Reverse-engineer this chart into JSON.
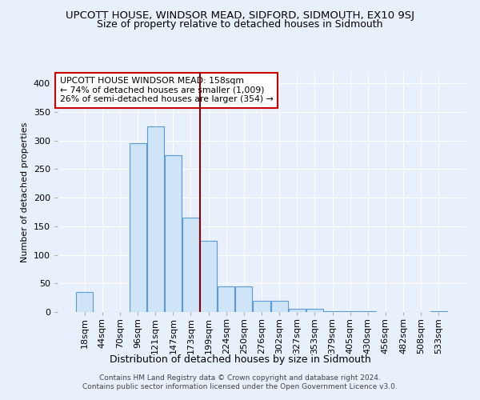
{
  "title": "UPCOTT HOUSE, WINDSOR MEAD, SIDFORD, SIDMOUTH, EX10 9SJ",
  "subtitle": "Size of property relative to detached houses in Sidmouth",
  "xlabel": "Distribution of detached houses by size in Sidmouth",
  "ylabel": "Number of detached properties",
  "categories": [
    "18sqm",
    "44sqm",
    "70sqm",
    "96sqm",
    "121sqm",
    "147sqm",
    "173sqm",
    "199sqm",
    "224sqm",
    "250sqm",
    "276sqm",
    "302sqm",
    "327sqm",
    "353sqm",
    "379sqm",
    "405sqm",
    "430sqm",
    "456sqm",
    "482sqm",
    "508sqm",
    "533sqm"
  ],
  "values": [
    35,
    0,
    0,
    295,
    325,
    275,
    165,
    125,
    45,
    45,
    20,
    20,
    5,
    5,
    2,
    2,
    1,
    0,
    0,
    0,
    2
  ],
  "bar_color": "#d0e4f7",
  "bar_edge_color": "#5b9bd5",
  "vline_x": 6.5,
  "vline_color": "#8B0000",
  "annotation_text": "UPCOTT HOUSE WINDSOR MEAD: 158sqm\n← 74% of detached houses are smaller (1,009)\n26% of semi-detached houses are larger (354) →",
  "annotation_box_color": "white",
  "annotation_box_edge": "#cc0000",
  "ylim": [
    0,
    420
  ],
  "yticks": [
    0,
    50,
    100,
    150,
    200,
    250,
    300,
    350,
    400
  ],
  "footer": "Contains HM Land Registry data © Crown copyright and database right 2024.\nContains public sector information licensed under the Open Government Licence v3.0.",
  "bg_color": "#e8f0fb",
  "plot_bg": "#e8f0fb",
  "grid_color": "#ffffff",
  "title_fontsize": 9.5,
  "subtitle_fontsize": 9,
  "ylabel_fontsize": 8,
  "xlabel_fontsize": 9,
  "tick_fontsize": 8,
  "footer_fontsize": 6.5
}
